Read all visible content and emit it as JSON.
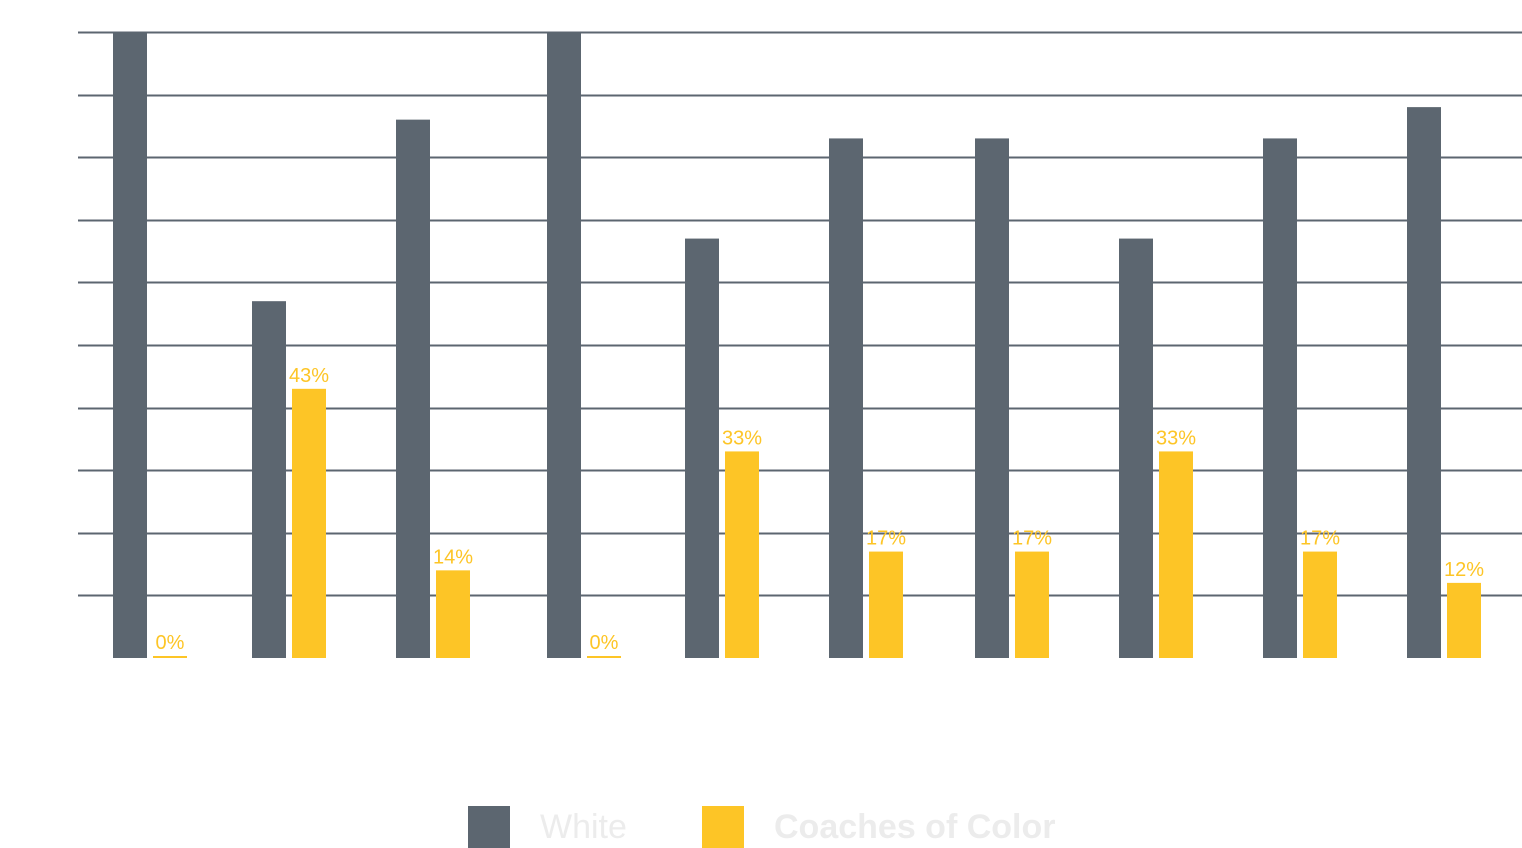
{
  "chart_data": {
    "type": "bar",
    "categories": [
      "",
      "",
      "",
      "",
      "",
      "",
      "",
      "",
      "",
      ""
    ],
    "ylim": [
      0,
      100
    ],
    "grid": true,
    "legend_position": "bottom-center",
    "series": [
      {
        "name": "White",
        "color": "#5c6670",
        "values": [
          100,
          57,
          86,
          100,
          67,
          83,
          83,
          67,
          83,
          88
        ],
        "value_labels": [
          "",
          "",
          "",
          "",
          "",
          "",
          "",
          "",
          "",
          ""
        ]
      },
      {
        "name": "Coaches of Color",
        "color": "#fdc526",
        "values": [
          0,
          43,
          14,
          0,
          33,
          17,
          17,
          33,
          17,
          12
        ],
        "value_labels": [
          "0%",
          "43%",
          "14%",
          "0%",
          "33%",
          "17%",
          "17%",
          "33%",
          "17%",
          "12%"
        ]
      }
    ]
  },
  "legend": {
    "white_label": "White",
    "coc_label": "Coaches of Color"
  }
}
